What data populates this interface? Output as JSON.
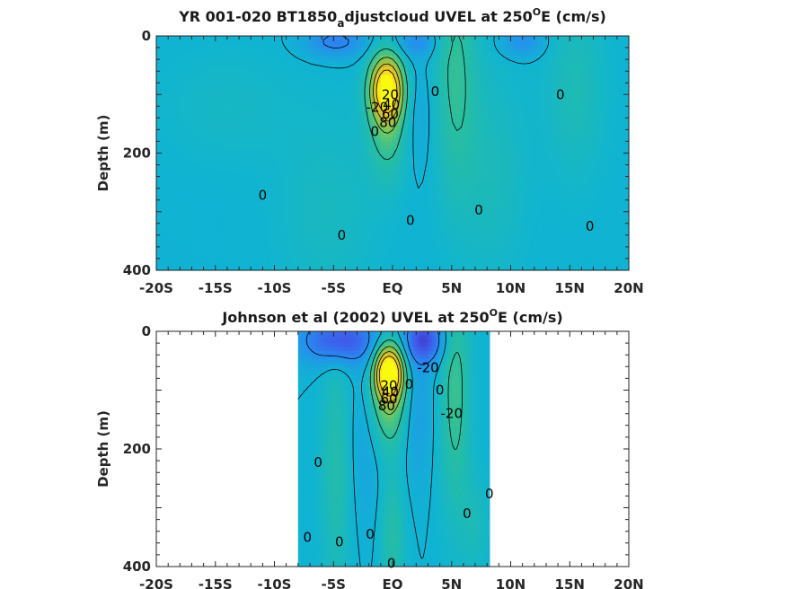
{
  "chart_data": [
    {
      "type": "heatmap",
      "title_parts": [
        "YR 001-020 BT1850",
        "a",
        "djustcloud UVEL at 250",
        "O",
        "E (cm/s)"
      ],
      "ylabel": "Depth (m)",
      "xlim": [
        -20,
        20
      ],
      "ylim": [
        0,
        400
      ],
      "y_reversed": true,
      "xticks": [
        -20,
        -15,
        -10,
        -5,
        0,
        5,
        10,
        15,
        20
      ],
      "xticklabels": [
        "-20S",
        "-15S",
        "-10S",
        "-5S",
        "EQ",
        "5N",
        "10N",
        "15N",
        "20N"
      ],
      "yticks": [
        0,
        200,
        400
      ],
      "yticklabels": [
        "0",
        "200",
        "400"
      ],
      "data_extent": [
        -20,
        20
      ],
      "background": "#17b6c6",
      "colormap": "parula",
      "features": [
        {
          "kind": "jet",
          "x": -0.5,
          "y": 90,
          "sx": 0.9,
          "sy": 35,
          "amp": 95
        },
        {
          "kind": "jet",
          "x": -0.3,
          "y": 135,
          "sx": 1.2,
          "sy": 70,
          "amp": 35
        },
        {
          "kind": "band",
          "x": 5.3,
          "y": 60,
          "sx": 1.3,
          "sy": 150,
          "amp": 22
        },
        {
          "kind": "band",
          "x": 15.5,
          "y": 90,
          "sx": 1.8,
          "sy": 110,
          "amp": 12
        },
        {
          "kind": "band",
          "x": 8.5,
          "y": 230,
          "sx": 2.0,
          "sy": 130,
          "amp": 10
        },
        {
          "kind": "band",
          "x": -5.5,
          "y": 300,
          "sx": 3.0,
          "sy": 120,
          "amp": 8
        },
        {
          "kind": "band",
          "x": -14,
          "y": 120,
          "sx": 4.0,
          "sy": 70,
          "amp": 6
        },
        {
          "kind": "surf",
          "x": -4.8,
          "y": 10,
          "sx": 1.8,
          "sy": 18,
          "amp": -25
        },
        {
          "kind": "surf",
          "x": 2.0,
          "y": 10,
          "sx": 1.3,
          "sy": 18,
          "amp": -18
        },
        {
          "kind": "surf",
          "x": 11.0,
          "y": 10,
          "sx": 1.3,
          "sy": 18,
          "amp": -18
        },
        {
          "kind": "surf",
          "x": 1.8,
          "y": 130,
          "sx": 1.2,
          "sy": 70,
          "amp": -10
        }
      ],
      "contour_labels": [
        {
          "text": "0",
          "x": -11,
          "y": 272
        },
        {
          "text": "0",
          "x": -4.3,
          "y": 340
        },
        {
          "text": "0",
          "x": -1.5,
          "y": 163
        },
        {
          "text": "0",
          "x": 1.5,
          "y": 315
        },
        {
          "text": "0",
          "x": 3.6,
          "y": 95
        },
        {
          "text": "0",
          "x": 7.3,
          "y": 297
        },
        {
          "text": "0",
          "x": 14.2,
          "y": 100
        },
        {
          "text": "0",
          "x": 16.7,
          "y": 325
        },
        {
          "text": "20",
          "x": -0.2,
          "y": 100
        },
        {
          "text": "40",
          "x": -0.1,
          "y": 117
        },
        {
          "text": "60",
          "x": -0.2,
          "y": 133
        },
        {
          "text": "80",
          "x": -0.4,
          "y": 148
        },
        {
          "text": "-20",
          "x": -1.3,
          "y": 122
        }
      ]
    },
    {
      "type": "heatmap",
      "title_parts": [
        "Johnson et al (2002) UVEL at 250",
        "O",
        "E (cm/s)"
      ],
      "ylabel": "Depth (m)",
      "xlim": [
        -20,
        20
      ],
      "ylim": [
        0,
        400
      ],
      "y_reversed": true,
      "xticks": [
        -20,
        -15,
        -10,
        -5,
        0,
        5,
        10,
        15,
        20
      ],
      "xticklabels": [
        "-20S",
        "-15S",
        "-10S",
        "-5S",
        "EQ",
        "5N",
        "10N",
        "15N",
        "20N"
      ],
      "yticks": [
        0,
        200,
        400
      ],
      "yticklabels": [
        "0",
        "200",
        "400"
      ],
      "data_extent": [
        -8,
        8.2
      ],
      "background": "#1ab3c3",
      "colormap": "parula",
      "features": [
        {
          "kind": "jet",
          "x": -0.3,
          "y": 70,
          "sx": 0.8,
          "sy": 30,
          "amp": 100
        },
        {
          "kind": "jet",
          "x": -0.3,
          "y": 110,
          "sx": 1.1,
          "sy": 60,
          "amp": 40
        },
        {
          "kind": "band",
          "x": 5.3,
          "y": 100,
          "sx": 0.9,
          "sy": 150,
          "amp": 25
        },
        {
          "kind": "band",
          "x": 0.0,
          "y": 350,
          "sx": 0.7,
          "sy": 80,
          "amp": 18
        },
        {
          "kind": "band",
          "x": -4.8,
          "y": 230,
          "sx": 0.9,
          "sy": 160,
          "amp": 16
        },
        {
          "kind": "band",
          "x": 7.0,
          "y": 330,
          "sx": 0.8,
          "sy": 60,
          "amp": 10
        },
        {
          "kind": "surf",
          "x": -4.5,
          "y": 15,
          "sx": 2.2,
          "sy": 28,
          "amp": -45
        },
        {
          "kind": "surf",
          "x": 2.7,
          "y": 15,
          "sx": 1.2,
          "sy": 28,
          "amp": -45
        },
        {
          "kind": "surf",
          "x": 2.0,
          "y": 130,
          "sx": 0.9,
          "sy": 80,
          "amp": -12
        },
        {
          "kind": "surf",
          "x": -2.3,
          "y": 180,
          "sx": 1.0,
          "sy": 100,
          "amp": -8
        }
      ],
      "contour_labels": [
        {
          "text": "0",
          "x": -6.3,
          "y": 223
        },
        {
          "text": "0",
          "x": -7.2,
          "y": 350
        },
        {
          "text": "0",
          "x": -4.5,
          "y": 358
        },
        {
          "text": "0",
          "x": -1.9,
          "y": 345
        },
        {
          "text": "0",
          "x": -0.1,
          "y": 395
        },
        {
          "text": "0",
          "x": 4.0,
          "y": 100
        },
        {
          "text": "0",
          "x": 6.3,
          "y": 310
        },
        {
          "text": "0",
          "x": 8.2,
          "y": 276
        },
        {
          "text": "0",
          "x": 1.4,
          "y": 90
        },
        {
          "text": "-20",
          "x": 3.0,
          "y": 62
        },
        {
          "text": "-20",
          "x": 5.0,
          "y": 140
        },
        {
          "text": "20",
          "x": -0.3,
          "y": 92
        },
        {
          "text": "40",
          "x": -0.2,
          "y": 103
        },
        {
          "text": "60",
          "x": -0.3,
          "y": 115
        },
        {
          "text": "80",
          "x": -0.5,
          "y": 127
        }
      ]
    }
  ]
}
